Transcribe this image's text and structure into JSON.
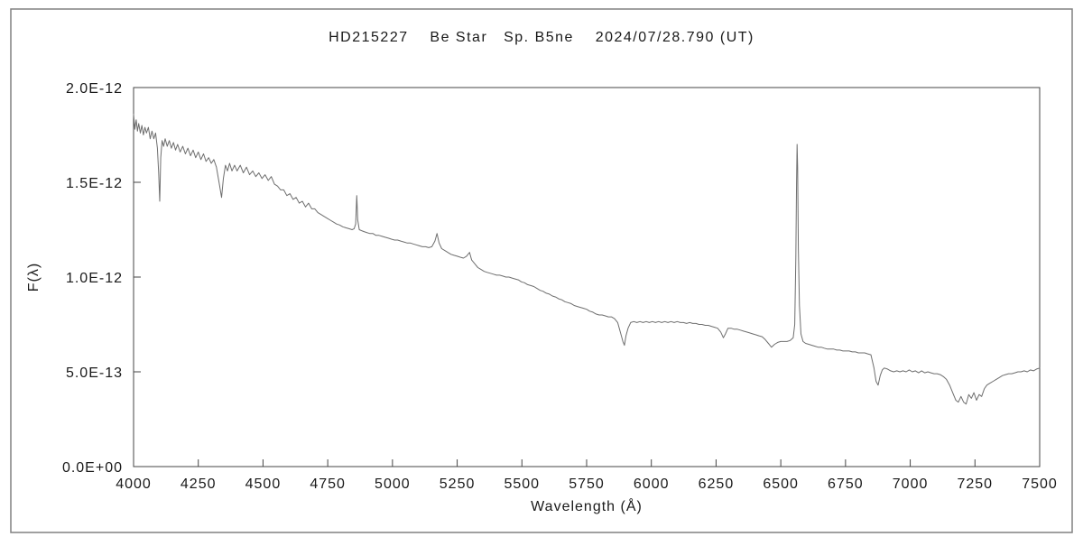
{
  "chart_data": {
    "type": "line",
    "title": "HD215227    Be Star   Sp. B5ne    2024/07/28.790 (UT)",
    "xlabel": "Wavelength (Å)",
    "ylabel": "F(λ)",
    "xlim": [
      4000,
      7500
    ],
    "ylim": [
      0,
      2e-12
    ],
    "y_scale": 1e-13,
    "x_tick_values": [
      4000,
      4250,
      4500,
      4750,
      5000,
      5250,
      5500,
      5750,
      6000,
      6250,
      6500,
      6750,
      7000,
      7250,
      7500
    ],
    "x_tick_labels": [
      "4000",
      "4250",
      "4500",
      "4750",
      "5000",
      "5250",
      "5500",
      "5750",
      "6000",
      "6250",
      "6500",
      "6750",
      "7000",
      "7250",
      "7500"
    ],
    "y_tick_values": [
      0,
      5,
      10,
      15,
      20
    ],
    "y_tick_labels": [
      "0.0E+00",
      "5.0E-13",
      "1.0E-12",
      "1.5E-12",
      "2.0E-12"
    ],
    "legend": "none",
    "grid": "off",
    "colors": {
      "line": "#6e6e6e",
      "text": "#1a1a1a",
      "background": "#ffffff"
    },
    "features": [
      {
        "name": "H-delta absorption",
        "x": 4101
      },
      {
        "name": "H-gamma absorption",
        "x": 4340
      },
      {
        "name": "H-beta small emission",
        "x": 4861
      },
      {
        "name": "Na D / telluric absorption",
        "x": 5890
      },
      {
        "name": "telluric O2 absorption",
        "x": 6280
      },
      {
        "name": "H-alpha strong emission",
        "x": 6563,
        "peak": 1.7e-12
      },
      {
        "name": "telluric O2 B-band absorption",
        "x": 6870
      },
      {
        "name": "telluric H2O broad absorption",
        "x": 7200
      }
    ],
    "points": [
      [
        4000,
        18.6
      ],
      [
        4005,
        17.8
      ],
      [
        4010,
        18.3
      ],
      [
        4015,
        17.7
      ],
      [
        4020,
        18.1
      ],
      [
        4026,
        17.6
      ],
      [
        4032,
        18.0
      ],
      [
        4038,
        17.5
      ],
      [
        4044,
        17.9
      ],
      [
        4050,
        17.6
      ],
      [
        4057,
        17.9
      ],
      [
        4064,
        17.3
      ],
      [
        4071,
        17.7
      ],
      [
        4078,
        17.3
      ],
      [
        4085,
        17.6
      ],
      [
        4092,
        16.8
      ],
      [
        4097,
        15.5
      ],
      [
        4101,
        14.0
      ],
      [
        4105,
        16.3
      ],
      [
        4110,
        17.2
      ],
      [
        4116,
        16.9
      ],
      [
        4122,
        17.3
      ],
      [
        4130,
        16.9
      ],
      [
        4138,
        17.2
      ],
      [
        4146,
        16.8
      ],
      [
        4154,
        17.1
      ],
      [
        4162,
        16.7
      ],
      [
        4170,
        17.0
      ],
      [
        4180,
        16.6
      ],
      [
        4190,
        16.9
      ],
      [
        4200,
        16.5
      ],
      [
        4210,
        16.8
      ],
      [
        4220,
        16.4
      ],
      [
        4230,
        16.7
      ],
      [
        4240,
        16.3
      ],
      [
        4250,
        16.6
      ],
      [
        4260,
        16.2
      ],
      [
        4270,
        16.5
      ],
      [
        4280,
        16.1
      ],
      [
        4290,
        16.3
      ],
      [
        4300,
        16.0
      ],
      [
        4310,
        16.2
      ],
      [
        4320,
        15.8
      ],
      [
        4330,
        15.0
      ],
      [
        4340,
        14.2
      ],
      [
        4347,
        15.2
      ],
      [
        4355,
        15.9
      ],
      [
        4363,
        15.6
      ],
      [
        4371,
        16.0
      ],
      [
        4380,
        15.6
      ],
      [
        4390,
        15.9
      ],
      [
        4400,
        15.6
      ],
      [
        4412,
        15.9
      ],
      [
        4424,
        15.5
      ],
      [
        4436,
        15.8
      ],
      [
        4448,
        15.4
      ],
      [
        4460,
        15.6
      ],
      [
        4472,
        15.3
      ],
      [
        4484,
        15.5
      ],
      [
        4496,
        15.2
      ],
      [
        4508,
        15.4
      ],
      [
        4520,
        15.1
      ],
      [
        4532,
        15.3
      ],
      [
        4544,
        14.9
      ],
      [
        4556,
        14.8
      ],
      [
        4568,
        14.6
      ],
      [
        4580,
        14.6
      ],
      [
        4592,
        14.3
      ],
      [
        4604,
        14.4
      ],
      [
        4616,
        14.1
      ],
      [
        4628,
        14.2
      ],
      [
        4640,
        13.9
      ],
      [
        4652,
        14.0
      ],
      [
        4664,
        13.7
      ],
      [
        4676,
        13.9
      ],
      [
        4688,
        13.6
      ],
      [
        4700,
        13.6
      ],
      [
        4712,
        13.4
      ],
      [
        4724,
        13.3
      ],
      [
        4736,
        13.2
      ],
      [
        4748,
        13.1
      ],
      [
        4760,
        13.0
      ],
      [
        4772,
        12.9
      ],
      [
        4784,
        12.8
      ],
      [
        4796,
        12.75
      ],
      [
        4808,
        12.65
      ],
      [
        4820,
        12.6
      ],
      [
        4832,
        12.55
      ],
      [
        4844,
        12.5
      ],
      [
        4852,
        12.55
      ],
      [
        4858,
        12.8
      ],
      [
        4862,
        14.3
      ],
      [
        4866,
        13.0
      ],
      [
        4872,
        12.5
      ],
      [
        4880,
        12.45
      ],
      [
        4890,
        12.4
      ],
      [
        4900,
        12.35
      ],
      [
        4912,
        12.3
      ],
      [
        4924,
        12.3
      ],
      [
        4936,
        12.2
      ],
      [
        4948,
        12.2
      ],
      [
        4960,
        12.15
      ],
      [
        4972,
        12.1
      ],
      [
        4984,
        12.05
      ],
      [
        4996,
        12.0
      ],
      [
        5008,
        11.95
      ],
      [
        5020,
        11.95
      ],
      [
        5032,
        11.9
      ],
      [
        5044,
        11.85
      ],
      [
        5056,
        11.8
      ],
      [
        5068,
        11.8
      ],
      [
        5080,
        11.75
      ],
      [
        5092,
        11.7
      ],
      [
        5104,
        11.65
      ],
      [
        5116,
        11.6
      ],
      [
        5128,
        11.6
      ],
      [
        5140,
        11.55
      ],
      [
        5152,
        11.6
      ],
      [
        5164,
        11.9
      ],
      [
        5172,
        12.3
      ],
      [
        5180,
        11.8
      ],
      [
        5190,
        11.5
      ],
      [
        5202,
        11.4
      ],
      [
        5214,
        11.3
      ],
      [
        5226,
        11.2
      ],
      [
        5238,
        11.15
      ],
      [
        5250,
        11.1
      ],
      [
        5262,
        11.05
      ],
      [
        5274,
        11.0
      ],
      [
        5286,
        11.1
      ],
      [
        5298,
        11.3
      ],
      [
        5306,
        10.9
      ],
      [
        5318,
        10.7
      ],
      [
        5330,
        10.5
      ],
      [
        5342,
        10.4
      ],
      [
        5354,
        10.3
      ],
      [
        5366,
        10.25
      ],
      [
        5378,
        10.2
      ],
      [
        5390,
        10.15
      ],
      [
        5402,
        10.1
      ],
      [
        5414,
        10.1
      ],
      [
        5426,
        10.05
      ],
      [
        5438,
        10.0
      ],
      [
        5450,
        10.0
      ],
      [
        5462,
        9.95
      ],
      [
        5474,
        9.9
      ],
      [
        5486,
        9.85
      ],
      [
        5498,
        9.75
      ],
      [
        5510,
        9.7
      ],
      [
        5522,
        9.6
      ],
      [
        5534,
        9.55
      ],
      [
        5546,
        9.5
      ],
      [
        5558,
        9.4
      ],
      [
        5570,
        9.3
      ],
      [
        5582,
        9.25
      ],
      [
        5594,
        9.15
      ],
      [
        5606,
        9.1
      ],
      [
        5618,
        9.0
      ],
      [
        5630,
        8.95
      ],
      [
        5642,
        8.85
      ],
      [
        5654,
        8.8
      ],
      [
        5666,
        8.7
      ],
      [
        5678,
        8.65
      ],
      [
        5690,
        8.6
      ],
      [
        5702,
        8.5
      ],
      [
        5714,
        8.45
      ],
      [
        5726,
        8.4
      ],
      [
        5738,
        8.35
      ],
      [
        5750,
        8.3
      ],
      [
        5762,
        8.2
      ],
      [
        5774,
        8.15
      ],
      [
        5786,
        8.05
      ],
      [
        5798,
        8.0
      ],
      [
        5810,
        8.0
      ],
      [
        5822,
        7.95
      ],
      [
        5834,
        7.9
      ],
      [
        5846,
        7.9
      ],
      [
        5858,
        7.8
      ],
      [
        5870,
        7.6
      ],
      [
        5882,
        7.0
      ],
      [
        5890,
        6.6
      ],
      [
        5896,
        6.4
      ],
      [
        5902,
        6.9
      ],
      [
        5910,
        7.3
      ],
      [
        5920,
        7.6
      ],
      [
        5932,
        7.65
      ],
      [
        5944,
        7.6
      ],
      [
        5956,
        7.65
      ],
      [
        5968,
        7.6
      ],
      [
        5980,
        7.65
      ],
      [
        5992,
        7.6
      ],
      [
        6004,
        7.65
      ],
      [
        6016,
        7.6
      ],
      [
        6028,
        7.65
      ],
      [
        6040,
        7.6
      ],
      [
        6052,
        7.65
      ],
      [
        6064,
        7.6
      ],
      [
        6076,
        7.65
      ],
      [
        6088,
        7.6
      ],
      [
        6100,
        7.65
      ],
      [
        6112,
        7.6
      ],
      [
        6124,
        7.6
      ],
      [
        6136,
        7.55
      ],
      [
        6148,
        7.6
      ],
      [
        6160,
        7.55
      ],
      [
        6172,
        7.55
      ],
      [
        6184,
        7.5
      ],
      [
        6196,
        7.5
      ],
      [
        6208,
        7.45
      ],
      [
        6220,
        7.45
      ],
      [
        6232,
        7.4
      ],
      [
        6244,
        7.35
      ],
      [
        6256,
        7.3
      ],
      [
        6268,
        7.1
      ],
      [
        6278,
        6.8
      ],
      [
        6286,
        7.0
      ],
      [
        6296,
        7.3
      ],
      [
        6308,
        7.3
      ],
      [
        6320,
        7.25
      ],
      [
        6332,
        7.25
      ],
      [
        6344,
        7.2
      ],
      [
        6356,
        7.15
      ],
      [
        6368,
        7.1
      ],
      [
        6380,
        7.05
      ],
      [
        6392,
        7.0
      ],
      [
        6404,
        6.95
      ],
      [
        6416,
        6.9
      ],
      [
        6428,
        6.85
      ],
      [
        6440,
        6.7
      ],
      [
        6452,
        6.5
      ],
      [
        6464,
        6.3
      ],
      [
        6476,
        6.45
      ],
      [
        6488,
        6.55
      ],
      [
        6500,
        6.6
      ],
      [
        6512,
        6.6
      ],
      [
        6524,
        6.6
      ],
      [
        6536,
        6.65
      ],
      [
        6548,
        6.8
      ],
      [
        6554,
        7.5
      ],
      [
        6558,
        11.0
      ],
      [
        6561,
        15.0
      ],
      [
        6563,
        17.0
      ],
      [
        6565,
        15.8
      ],
      [
        6568,
        11.5
      ],
      [
        6572,
        8.5
      ],
      [
        6578,
        7.0
      ],
      [
        6586,
        6.6
      ],
      [
        6596,
        6.5
      ],
      [
        6608,
        6.45
      ],
      [
        6620,
        6.4
      ],
      [
        6632,
        6.35
      ],
      [
        6644,
        6.3
      ],
      [
        6656,
        6.3
      ],
      [
        6668,
        6.25
      ],
      [
        6680,
        6.2
      ],
      [
        6692,
        6.2
      ],
      [
        6704,
        6.2
      ],
      [
        6716,
        6.15
      ],
      [
        6728,
        6.15
      ],
      [
        6740,
        6.1
      ],
      [
        6752,
        6.1
      ],
      [
        6764,
        6.1
      ],
      [
        6776,
        6.05
      ],
      [
        6788,
        6.05
      ],
      [
        6800,
        6.0
      ],
      [
        6812,
        6.0
      ],
      [
        6824,
        6.0
      ],
      [
        6836,
        5.95
      ],
      [
        6848,
        5.9
      ],
      [
        6860,
        5.2
      ],
      [
        6868,
        4.5
      ],
      [
        6876,
        4.3
      ],
      [
        6884,
        4.8
      ],
      [
        6892,
        5.1
      ],
      [
        6900,
        5.2
      ],
      [
        6912,
        5.15
      ],
      [
        6924,
        5.05
      ],
      [
        6936,
        5.0
      ],
      [
        6948,
        5.05
      ],
      [
        6960,
        5.0
      ],
      [
        6972,
        5.05
      ],
      [
        6984,
        5.0
      ],
      [
        6996,
        5.1
      ],
      [
        7008,
        5.0
      ],
      [
        7020,
        5.05
      ],
      [
        7032,
        4.95
      ],
      [
        7044,
        5.05
      ],
      [
        7056,
        4.95
      ],
      [
        7068,
        5.0
      ],
      [
        7080,
        4.95
      ],
      [
        7092,
        4.9
      ],
      [
        7104,
        4.9
      ],
      [
        7116,
        4.85
      ],
      [
        7128,
        4.75
      ],
      [
        7140,
        4.6
      ],
      [
        7152,
        4.3
      ],
      [
        7164,
        3.9
      ],
      [
        7176,
        3.5
      ],
      [
        7186,
        3.4
      ],
      [
        7196,
        3.7
      ],
      [
        7206,
        3.4
      ],
      [
        7216,
        3.3
      ],
      [
        7226,
        3.8
      ],
      [
        7236,
        3.6
      ],
      [
        7246,
        3.9
      ],
      [
        7256,
        3.5
      ],
      [
        7266,
        3.8
      ],
      [
        7276,
        3.7
      ],
      [
        7286,
        4.1
      ],
      [
        7296,
        4.3
      ],
      [
        7308,
        4.4
      ],
      [
        7320,
        4.5
      ],
      [
        7332,
        4.6
      ],
      [
        7344,
        4.7
      ],
      [
        7356,
        4.8
      ],
      [
        7368,
        4.85
      ],
      [
        7380,
        4.9
      ],
      [
        7392,
        4.9
      ],
      [
        7404,
        4.95
      ],
      [
        7416,
        5.0
      ],
      [
        7428,
        5.0
      ],
      [
        7440,
        5.05
      ],
      [
        7452,
        5.0
      ],
      [
        7464,
        5.1
      ],
      [
        7476,
        5.05
      ],
      [
        7488,
        5.15
      ],
      [
        7500,
        5.2
      ]
    ]
  }
}
